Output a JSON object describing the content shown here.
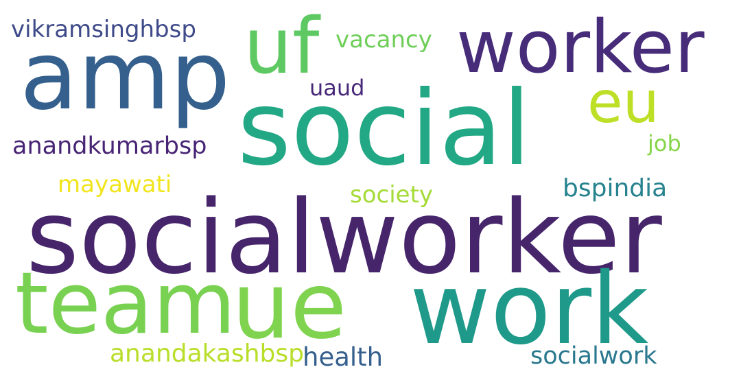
{
  "word_cloud": {
    "words": [
      {
        "text": "socialworker",
        "color": "#46256b"
      },
      {
        "text": "social",
        "color": "#22a884"
      },
      {
        "text": "amp",
        "color": "#35608d"
      },
      {
        "text": "worker",
        "color": "#472c7a"
      },
      {
        "text": "uf",
        "color": "#5ec962"
      },
      {
        "text": "eu",
        "color": "#bddf26"
      },
      {
        "text": "team",
        "color": "#79d151"
      },
      {
        "text": "ue",
        "color": "#7fd34e"
      },
      {
        "text": "work",
        "color": "#1f9a8a"
      },
      {
        "text": "vikramsinghbsp",
        "color": "#3e4a89"
      },
      {
        "text": "vacancy",
        "color": "#6ece58"
      },
      {
        "text": "uaud",
        "color": "#482979"
      },
      {
        "text": "anandkumarbsp",
        "color": "#482475"
      },
      {
        "text": "job",
        "color": "#86d549"
      },
      {
        "text": "mayawati",
        "color": "#f1e51d"
      },
      {
        "text": "society",
        "color": "#a5db36"
      },
      {
        "text": "bspindia",
        "color": "#26828e"
      },
      {
        "text": "anandakashbsp",
        "color": "#b8de29"
      },
      {
        "text": "health",
        "color": "#355f8d"
      },
      {
        "text": "socialwork",
        "color": "#2a788e"
      }
    ]
  }
}
